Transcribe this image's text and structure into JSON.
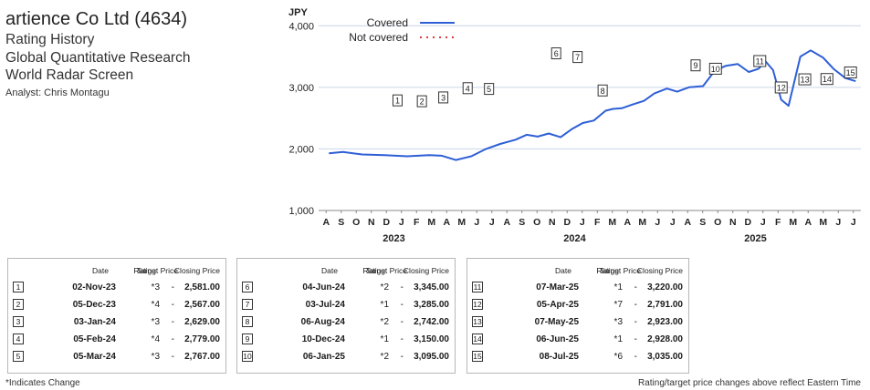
{
  "header": {
    "company": "artience Co Ltd (4634)",
    "line1": "Rating History",
    "line2": "Global Quantitative Research",
    "line3": "World Radar Screen",
    "analyst": "Analyst: Chris Montagu"
  },
  "chart_data": {
    "type": "line",
    "ylabel": "JPY",
    "ylim": [
      1000,
      4300
    ],
    "yticks": [
      1000,
      2000,
      3000,
      4000
    ],
    "ytick_labels": [
      "1,000",
      "2,000",
      "3,000",
      "4,000"
    ],
    "grid": true,
    "legend": {
      "position": "top-left",
      "entries": [
        {
          "label": "Covered",
          "color": "#2e5fd6",
          "style": "solid"
        },
        {
          "label": "Not covered",
          "color": "#e03a3a",
          "style": "dotted"
        }
      ]
    },
    "month_labels": [
      "A",
      "S",
      "O",
      "N",
      "D",
      "J",
      "F",
      "M",
      "A",
      "M",
      "J",
      "J",
      "A",
      "S",
      "O",
      "N",
      "D",
      "J",
      "F",
      "M",
      "A",
      "M",
      "J",
      "J",
      "A",
      "S",
      "O",
      "N",
      "D",
      "J",
      "F",
      "M",
      "A",
      "M",
      "J",
      "J"
    ],
    "year_labels": [
      "2023",
      "2024",
      "2025"
    ],
    "series": [
      {
        "color": "#2e5fd6",
        "x": [
          "2023-08-01",
          "2023-08-20",
          "2023-09-15",
          "2023-10-15",
          "2023-11-15",
          "2023-12-15",
          "2024-01-01",
          "2024-01-20",
          "2024-02-10",
          "2024-03-01",
          "2024-03-20",
          "2024-04-10",
          "2024-04-25",
          "2024-05-10",
          "2024-05-25",
          "2024-06-10",
          "2024-06-25",
          "2024-07-10",
          "2024-07-25",
          "2024-08-10",
          "2024-08-20",
          "2024-09-01",
          "2024-09-15",
          "2024-10-01",
          "2024-10-15",
          "2024-11-01",
          "2024-11-15",
          "2024-12-01",
          "2024-12-20",
          "2025-01-05",
          "2025-01-20",
          "2025-02-05",
          "2025-02-20",
          "2025-03-05",
          "2025-03-15",
          "2025-03-25",
          "2025-04-05",
          "2025-04-15",
          "2025-05-01",
          "2025-05-15",
          "2025-06-01",
          "2025-06-15",
          "2025-07-01",
          "2025-07-15"
        ],
        "values": [
          1930,
          1950,
          1910,
          1900,
          1880,
          1900,
          1890,
          1820,
          1880,
          2000,
          2080,
          2150,
          2230,
          2200,
          2250,
          2190,
          2320,
          2420,
          2460,
          2620,
          2650,
          2660,
          2720,
          2780,
          2900,
          2980,
          2930,
          3000,
          3020,
          3270,
          3350,
          3380,
          3250,
          3300,
          3420,
          3280,
          2800,
          2700,
          3500,
          3600,
          3480,
          3300,
          3150,
          3100
        ]
      }
    ],
    "annotations": [
      {
        "label": "1",
        "date": "2023-11-02",
        "value": 2581
      },
      {
        "label": "2",
        "date": "2023-12-05",
        "value": 2567
      },
      {
        "label": "3",
        "date": "2024-01-03",
        "value": 2629
      },
      {
        "label": "4",
        "date": "2024-02-05",
        "value": 2779
      },
      {
        "label": "5",
        "date": "2024-03-05",
        "value": 2767
      },
      {
        "label": "6",
        "date": "2024-06-04",
        "value": 3345
      },
      {
        "label": "7",
        "date": "2024-07-03",
        "value": 3285
      },
      {
        "label": "8",
        "date": "2024-08-06",
        "value": 2742
      },
      {
        "label": "9",
        "date": "2024-12-10",
        "value": 3150
      },
      {
        "label": "10",
        "date": "2025-01-06",
        "value": 3095
      },
      {
        "label": "11",
        "date": "2025-03-07",
        "value": 3220
      },
      {
        "label": "12",
        "date": "2025-04-05",
        "value": 2791
      },
      {
        "label": "13",
        "date": "2025-05-07",
        "value": 2923
      },
      {
        "label": "14",
        "date": "2025-06-06",
        "value": 2928
      },
      {
        "label": "15",
        "date": "2025-07-08",
        "value": 3035
      }
    ]
  },
  "table": {
    "headers": {
      "date": "Date",
      "rating": "Rating",
      "target": "Target Price",
      "close": "Closing Price"
    },
    "groups": [
      [
        {
          "n": "1",
          "date": "02-Nov-23",
          "rating": "*3",
          "target": "-",
          "close": "2,581.00"
        },
        {
          "n": "2",
          "date": "05-Dec-23",
          "rating": "*4",
          "target": "-",
          "close": "2,567.00"
        },
        {
          "n": "3",
          "date": "03-Jan-24",
          "rating": "*3",
          "target": "-",
          "close": "2,629.00"
        },
        {
          "n": "4",
          "date": "05-Feb-24",
          "rating": "*4",
          "target": "-",
          "close": "2,779.00"
        },
        {
          "n": "5",
          "date": "05-Mar-24",
          "rating": "*3",
          "target": "-",
          "close": "2,767.00"
        }
      ],
      [
        {
          "n": "6",
          "date": "04-Jun-24",
          "rating": "*2",
          "target": "-",
          "close": "3,345.00"
        },
        {
          "n": "7",
          "date": "03-Jul-24",
          "rating": "*1",
          "target": "-",
          "close": "3,285.00"
        },
        {
          "n": "8",
          "date": "06-Aug-24",
          "rating": "*2",
          "target": "-",
          "close": "2,742.00"
        },
        {
          "n": "9",
          "date": "10-Dec-24",
          "rating": "*1",
          "target": "-",
          "close": "3,150.00"
        },
        {
          "n": "10",
          "date": "06-Jan-25",
          "rating": "*2",
          "target": "-",
          "close": "3,095.00"
        }
      ],
      [
        {
          "n": "11",
          "date": "07-Mar-25",
          "rating": "*1",
          "target": "-",
          "close": "3,220.00"
        },
        {
          "n": "12",
          "date": "05-Apr-25",
          "rating": "*7",
          "target": "-",
          "close": "2,791.00"
        },
        {
          "n": "13",
          "date": "07-May-25",
          "rating": "*3",
          "target": "-",
          "close": "2,923.00"
        },
        {
          "n": "14",
          "date": "06-Jun-25",
          "rating": "*1",
          "target": "-",
          "close": "2,928.00"
        },
        {
          "n": "15",
          "date": "08-Jul-25",
          "rating": "*6",
          "target": "-",
          "close": "3,035.00"
        }
      ]
    ]
  },
  "footer": {
    "left": "*Indicates Change",
    "right": "Rating/target price changes above reflect Eastern Time"
  }
}
